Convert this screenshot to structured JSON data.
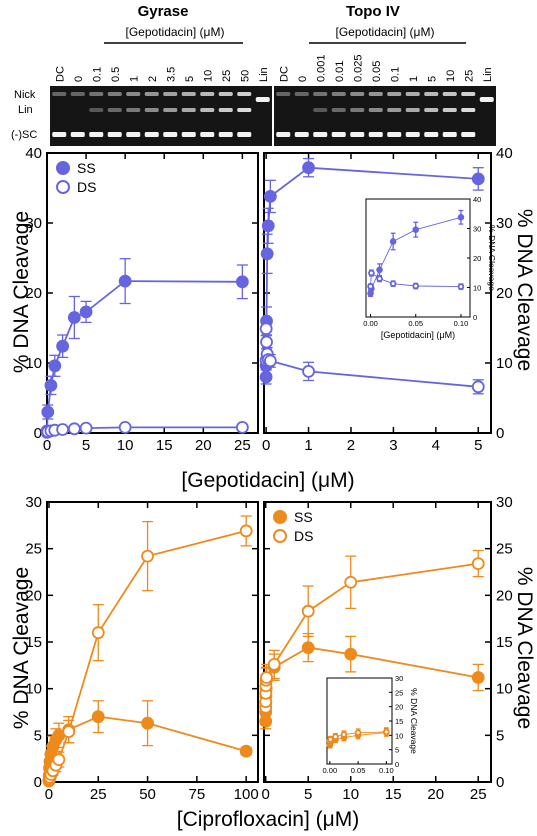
{
  "gels": {
    "gyrase": {
      "title": "Gyrase",
      "drug_label": "[Gepotidacin] (μM)",
      "lanes": [
        "DC",
        "0",
        "0.1",
        "0.5",
        "1",
        "2",
        "3.5",
        "5",
        "10",
        "25",
        "50",
        "Lin"
      ]
    },
    "topo": {
      "title": "Topo IV",
      "drug_label": "[Gepotidacin] (μM)",
      "lanes": [
        "DC",
        "0",
        "0.001",
        "0.01",
        "0.025",
        "0.05",
        "0.1",
        "1",
        "5",
        "10",
        "25",
        "Lin"
      ]
    },
    "band_labels": [
      "Nick",
      "Lin",
      "(-)SC"
    ]
  },
  "chart_data": [
    {
      "id": "gyrase-gepotidacin",
      "type": "line",
      "xlim": [
        0,
        27
      ],
      "ylim": [
        0,
        40
      ],
      "xticks": [
        0,
        5,
        10,
        15,
        20,
        25
      ],
      "yticks": [
        0,
        10,
        20,
        30,
        40
      ],
      "ylabel": "% DNA Cleavage",
      "legend": [
        "SS",
        "DS"
      ],
      "legend_position": "top-left",
      "color": "#6565e0",
      "series": [
        {
          "name": "SS",
          "marker": "filled",
          "x": [
            0,
            0.1,
            0.5,
            1,
            2,
            3.5,
            5,
            10,
            25
          ],
          "y": [
            0.3,
            3.0,
            6.8,
            9.6,
            12.4,
            16.5,
            17.3,
            21.7,
            21.6
          ],
          "err": [
            0.2,
            1.0,
            1.3,
            1.5,
            1.6,
            3.0,
            1.5,
            3.2,
            2.4
          ]
        },
        {
          "name": "DS",
          "marker": "open",
          "x": [
            0,
            0.1,
            0.5,
            1,
            2,
            3.5,
            5,
            10,
            25
          ],
          "y": [
            0.1,
            0.2,
            0.3,
            0.4,
            0.5,
            0.6,
            0.7,
            0.8,
            0.8
          ],
          "err": [
            0.1,
            0.1,
            0.1,
            0.1,
            0.1,
            0.2,
            0.2,
            0.2,
            0.2
          ]
        }
      ]
    },
    {
      "id": "topo-gepotidacin",
      "type": "line",
      "xlim": [
        -0.05,
        5.3
      ],
      "ylim": [
        0,
        40
      ],
      "xticks": [
        0,
        1,
        2,
        3,
        4,
        5
      ],
      "yticks": [
        0,
        10,
        20,
        30,
        40
      ],
      "ylabel": "% DNA Cleavage",
      "color": "#6565e0",
      "series": [
        {
          "name": "SS",
          "marker": "filled",
          "x": [
            0,
            0.001,
            0.01,
            0.025,
            0.05,
            0.1,
            1,
            5
          ],
          "y": [
            8.0,
            9.6,
            16.0,
            25.6,
            29.6,
            33.8,
            37.9,
            36.3
          ],
          "err": [
            1.0,
            1.2,
            2.0,
            2.8,
            2.5,
            2.3,
            1.3,
            1.6
          ]
        },
        {
          "name": "DS",
          "marker": "open",
          "x": [
            0,
            0.001,
            0.01,
            0.025,
            0.05,
            0.1,
            1,
            5
          ],
          "y": [
            10.4,
            14.9,
            13.0,
            11.3,
            10.5,
            10.3,
            8.8,
            6.6
          ],
          "err": [
            0.8,
            1.0,
            1.0,
            0.9,
            0.9,
            0.9,
            1.3,
            1.0
          ]
        }
      ],
      "inset": {
        "xlim": [
          -0.005,
          0.11
        ],
        "ylim": [
          0,
          40
        ],
        "xticks": [
          0.0,
          0.05,
          0.1
        ],
        "xticklabels": [
          "0.00",
          "0.05",
          "0.10"
        ],
        "yticks": [
          0,
          10,
          20,
          30,
          40
        ],
        "xlabel": "[Gepotidacin] (μM)",
        "ylabel": "% DNA Cleavage"
      }
    },
    {
      "id": "gyrase-ciprofloxacin",
      "type": "line",
      "xlim": [
        -1,
        106
      ],
      "ylim": [
        0,
        30
      ],
      "xticks": [
        0,
        25,
        50,
        75,
        100
      ],
      "yticks": [
        0,
        5,
        10,
        15,
        20,
        25,
        30
      ],
      "ylabel": "% DNA Cleavage",
      "color": "#ee8a1c",
      "series": [
        {
          "name": "SS",
          "marker": "filled",
          "x": [
            0,
            0.1,
            0.25,
            0.5,
            1,
            2,
            3.5,
            5,
            10,
            25,
            50,
            100
          ],
          "y": [
            0.2,
            0.7,
            1.5,
            2.2,
            3.0,
            3.8,
            4.5,
            5.0,
            5.6,
            7.0,
            6.3,
            3.3
          ],
          "err": [
            0.1,
            0.3,
            0.5,
            0.7,
            0.9,
            1.1,
            1.2,
            1.3,
            1.4,
            1.7,
            2.4,
            0.4
          ]
        },
        {
          "name": "DS",
          "marker": "open",
          "x": [
            0,
            0.1,
            0.25,
            0.5,
            1,
            2,
            3.5,
            5,
            10,
            25,
            50,
            100
          ],
          "y": [
            0.1,
            0.2,
            0.3,
            0.5,
            0.8,
            1.2,
            1.8,
            2.4,
            5.4,
            16.0,
            24.2,
            26.9
          ],
          "err": [
            0.1,
            0.1,
            0.2,
            0.3,
            0.4,
            0.5,
            0.7,
            0.8,
            1.2,
            3.0,
            3.7,
            1.6
          ]
        }
      ]
    },
    {
      "id": "topo-ciprofloxacin",
      "type": "line",
      "xlim": [
        -0.2,
        26.5
      ],
      "ylim": [
        0,
        30
      ],
      "xticks": [
        0,
        5,
        10,
        15,
        20,
        25
      ],
      "yticks": [
        0,
        5,
        10,
        15,
        20,
        25,
        30
      ],
      "ylabel": "% DNA Cleavage",
      "legend": [
        "SS",
        "DS"
      ],
      "legend_position": "top-left",
      "color": "#ee8a1c",
      "series": [
        {
          "name": "SS",
          "marker": "filled",
          "x": [
            0,
            0.001,
            0.01,
            0.025,
            0.05,
            0.1,
            1,
            5,
            10,
            25
          ],
          "y": [
            6.5,
            7.5,
            8.5,
            9.2,
            10.0,
            11.0,
            12.3,
            14.4,
            13.7,
            11.2
          ],
          "err": [
            0.8,
            0.9,
            1.0,
            1.1,
            1.2,
            1.3,
            1.4,
            1.5,
            1.9,
            1.4
          ]
        },
        {
          "name": "DS",
          "marker": "open",
          "x": [
            0,
            0.001,
            0.01,
            0.025,
            0.05,
            0.1,
            1,
            5,
            10,
            25
          ],
          "y": [
            8.0,
            8.6,
            9.5,
            10.3,
            10.9,
            11.2,
            12.6,
            18.3,
            21.4,
            23.4
          ],
          "err": [
            0.9,
            1.0,
            1.1,
            1.2,
            1.3,
            1.4,
            1.5,
            2.7,
            2.8,
            1.4
          ]
        }
      ],
      "inset": {
        "xlim": [
          -0.005,
          0.11
        ],
        "ylim": [
          0,
          30
        ],
        "xticks": [
          0.0,
          0.05,
          0.1
        ],
        "xticklabels": [
          "0.00",
          "0.05",
          "0.10"
        ],
        "yticks": [
          0,
          5,
          10,
          15,
          20,
          25,
          30
        ],
        "ylabel": "% DNA Cleavage"
      }
    }
  ],
  "x_axis_labels": {
    "gepotidacin": "[Gepotidacin] (μM)",
    "ciprofloxacin": "[Ciprofloxacin] (μM)"
  }
}
